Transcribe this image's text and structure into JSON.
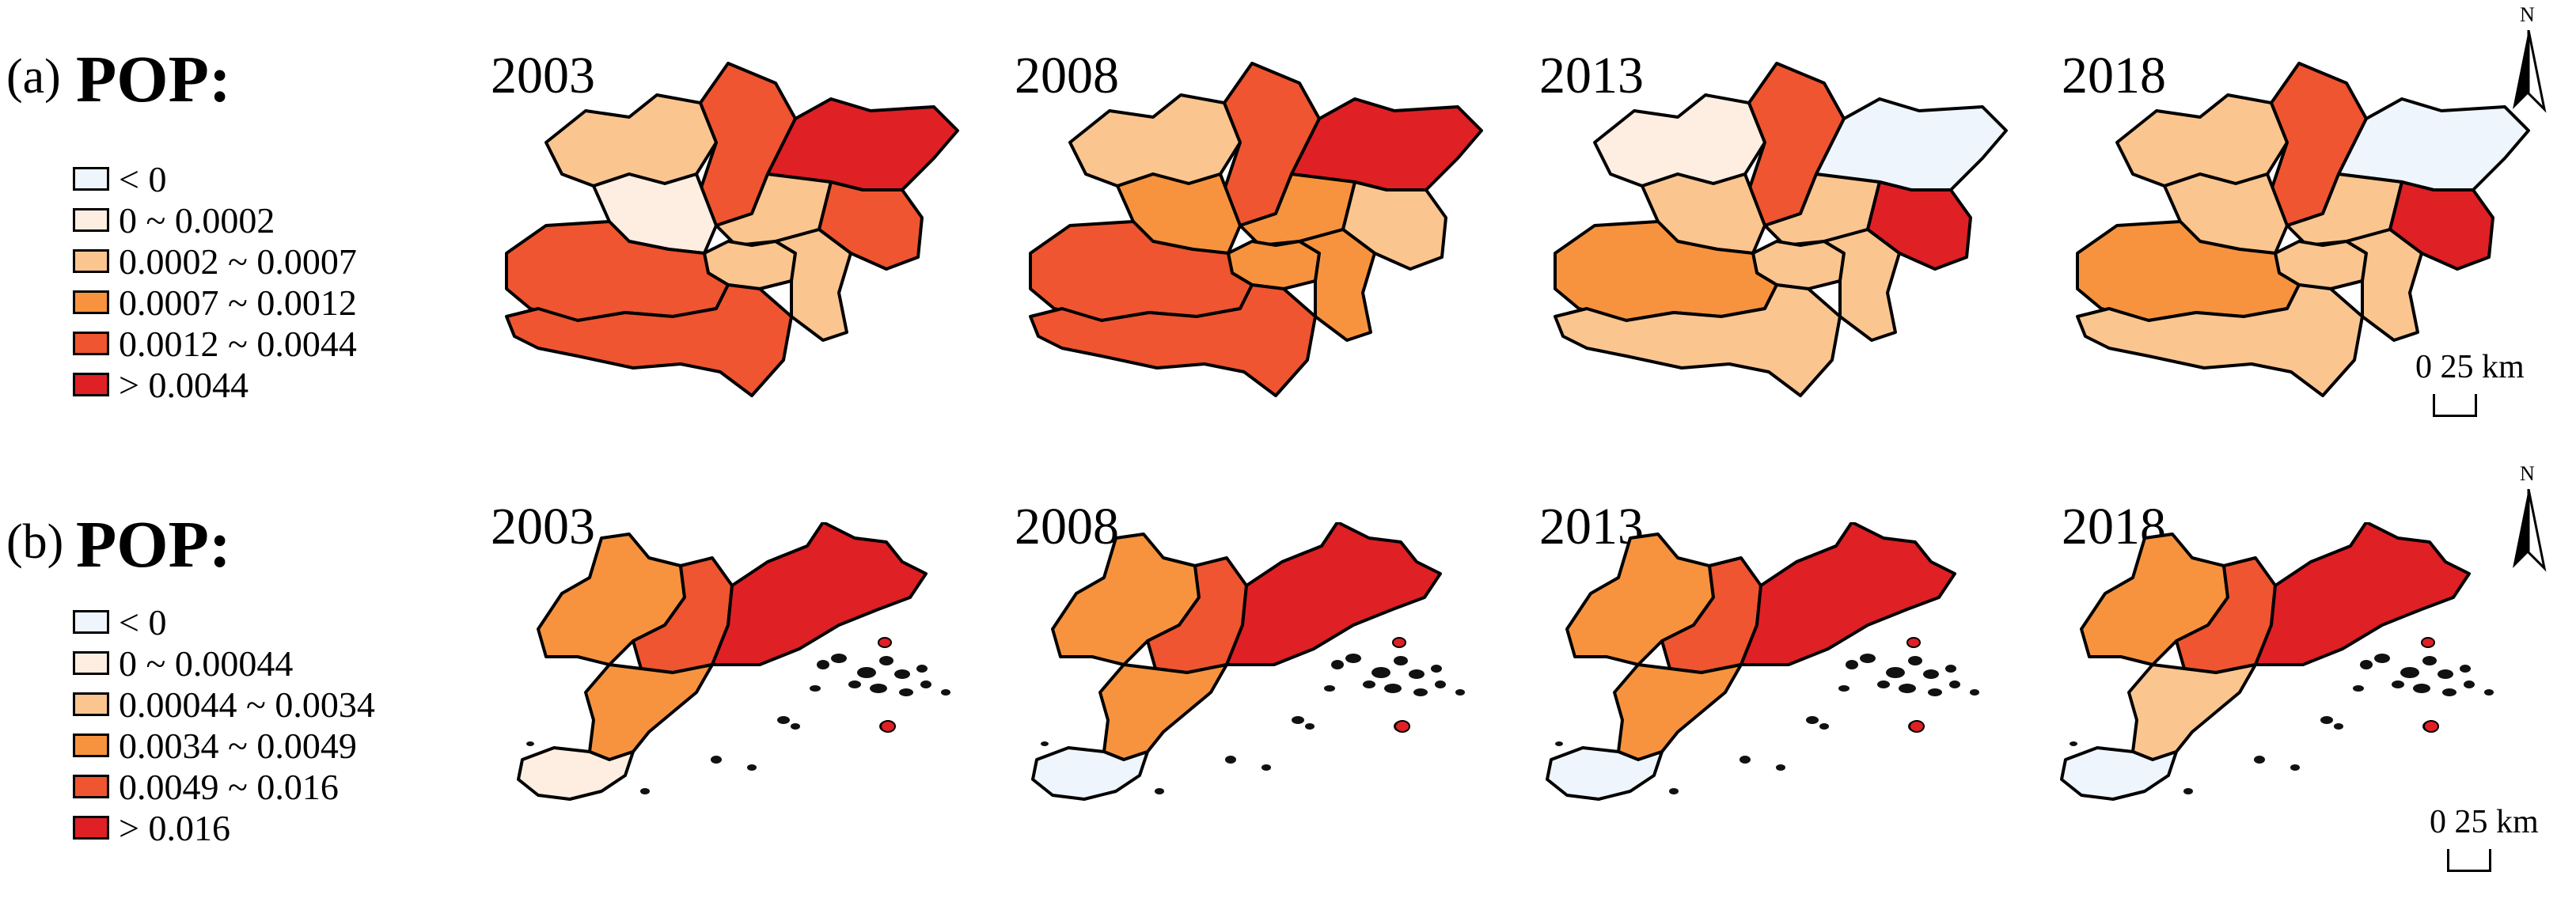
{
  "rows": [
    {
      "tag": "(a)",
      "title": "POP:",
      "years": [
        "2003",
        "2008",
        "2013",
        "2018"
      ],
      "legend": [
        {
          "label": "< 0",
          "color": "#eef5fc"
        },
        {
          "label": "0 ~ 0.0002",
          "color": "#fdeee1"
        },
        {
          "label": "0.0002 ~ 0.0007",
          "color": "#fbc590"
        },
        {
          "label": "0.0007 ~ 0.0012",
          "color": "#f7933f"
        },
        {
          "label": "0.0012 ~ 0.0044",
          "color": "#ef5530"
        },
        {
          "label": "> 0.0044",
          "color": "#df2025"
        }
      ],
      "scale_label": "0  25  km",
      "north_label": "N"
    },
    {
      "tag": "(b)",
      "title": "POP:",
      "years": [
        "2003",
        "2008",
        "2013",
        "2018"
      ],
      "legend": [
        {
          "label": "< 0",
          "color": "#eef5fc"
        },
        {
          "label": "0 ~ 0.00044",
          "color": "#fdeee1"
        },
        {
          "label": "0.00044 ~ 0.0034",
          "color": "#fbc590"
        },
        {
          "label": "0.0034 ~ 0.0049",
          "color": "#f7933f"
        },
        {
          "label": "0.0049 ~ 0.016",
          "color": "#ef5530"
        },
        {
          "label": "> 0.016",
          "color": "#df2025"
        }
      ],
      "scale_label": "0 25  km",
      "north_label": "N"
    }
  ],
  "maps_a": [
    {
      "year": "2003",
      "classes": {
        "nw": 2,
        "n": 4,
        "ne": 5,
        "w": 1,
        "c": 2,
        "e": 4,
        "sw": 4,
        "s": 4,
        "se": 2,
        "core": 2
      }
    },
    {
      "year": "2008",
      "classes": {
        "nw": 2,
        "n": 4,
        "ne": 5,
        "w": 3,
        "c": 3,
        "e": 2,
        "sw": 4,
        "s": 4,
        "se": 3,
        "core": 3
      }
    },
    {
      "year": "2013",
      "classes": {
        "nw": 1,
        "n": 4,
        "ne": 0,
        "w": 2,
        "c": 2,
        "e": 5,
        "sw": 3,
        "s": 2,
        "se": 2,
        "core": 2
      }
    },
    {
      "year": "2018",
      "classes": {
        "nw": 2,
        "n": 4,
        "ne": 0,
        "w": 2,
        "c": 2,
        "e": 5,
        "sw": 3,
        "s": 2,
        "se": 2,
        "core": 2
      }
    }
  ],
  "maps_b": [
    {
      "year": "2003",
      "classes": {
        "north": 3,
        "mid": 4,
        "east": 5,
        "south": 3,
        "tip": 1
      }
    },
    {
      "year": "2008",
      "classes": {
        "north": 3,
        "mid": 4,
        "east": 5,
        "south": 3,
        "tip": 0
      }
    },
    {
      "year": "2013",
      "classes": {
        "north": 3,
        "mid": 4,
        "east": 5,
        "south": 3,
        "tip": 0
      }
    },
    {
      "year": "2018",
      "classes": {
        "north": 3,
        "mid": 4,
        "east": 5,
        "south": 2,
        "tip": 0
      }
    }
  ]
}
